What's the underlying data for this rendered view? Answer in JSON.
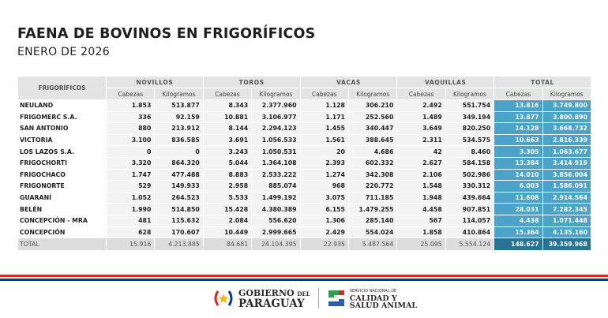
{
  "title": "FAENA DE BOVINOS EN FRIGORÍFICOS",
  "subtitle": "ENERO DE 2026",
  "table": {
    "first_header": "FRIGORÍFICOS",
    "groups": [
      "NOVILLOS",
      "TOROS",
      "VACAS",
      "VAQUILLAS",
      "TOTAL"
    ],
    "subheaders": [
      "Cabezas",
      "Kilogramos"
    ],
    "rows": [
      {
        "name": "NEULAND",
        "values": [
          "1.853",
          "513.877",
          "8.343",
          "2.377.960",
          "1.128",
          "306.210",
          "2.492",
          "551.754",
          "13.816",
          "3.749.800"
        ]
      },
      {
        "name": "FRIGOMERC S.A.",
        "values": [
          "336",
          "92.159",
          "10.881",
          "3.106.977",
          "1.171",
          "252.560",
          "1.489",
          "349.194",
          "13.877",
          "3.800.890"
        ]
      },
      {
        "name": "SAN ANTONIO",
        "values": [
          "880",
          "213.912",
          "8.144",
          "2.294.123",
          "1.455",
          "340.447",
          "3.649",
          "820.250",
          "14.128",
          "3.668.732"
        ]
      },
      {
        "name": "VICTORIA",
        "values": [
          "3.100",
          "836.585",
          "3.691",
          "1.056.533",
          "1.561",
          "388.645",
          "2.311",
          "534.575",
          "10.663",
          "2.816.339"
        ]
      },
      {
        "name": "LOS LAZOS S.A.",
        "values": [
          "0",
          "0",
          "3.243",
          "1.050.531",
          "20",
          "4.686",
          "42",
          "8.460",
          "3.305",
          "1.063.677"
        ]
      },
      {
        "name": "FRIGOCHORTI",
        "values": [
          "3.320",
          "864.320",
          "5.044",
          "1.364.108",
          "2.393",
          "602.332",
          "2.627",
          "584.158",
          "13.384",
          "3.414.919"
        ]
      },
      {
        "name": "FRIGOCHACO",
        "values": [
          "1.747",
          "477.488",
          "8.883",
          "2.533.222",
          "1.274",
          "342.308",
          "2.106",
          "502.986",
          "14.010",
          "3.856.004"
        ]
      },
      {
        "name": "FRIGONORTE",
        "values": [
          "529",
          "149.933",
          "2.958",
          "885.074",
          "968",
          "220.772",
          "1.548",
          "330.312",
          "6.003",
          "1.586.091"
        ]
      },
      {
        "name": "GUARANÍ",
        "values": [
          "1.052",
          "264.523",
          "5.533",
          "1.499.192",
          "3.075",
          "711.185",
          "1.948",
          "439.664",
          "11.608",
          "2.914.564"
        ]
      },
      {
        "name": "BELÉN",
        "values": [
          "1.990",
          "514.850",
          "15.428",
          "4.380.389",
          "6.155",
          "1.479.255",
          "4.458",
          "907.851",
          "28.031",
          "7.282.345"
        ]
      },
      {
        "name": "CONCEPCIÓN - MRA",
        "values": [
          "481",
          "115.632",
          "2.084",
          "556.620",
          "1.306",
          "285.140",
          "567",
          "114.057",
          "4.438",
          "1.071.448"
        ]
      },
      {
        "name": "CONCEPCIÓN",
        "values": [
          "628",
          "170.607",
          "10.449",
          "2.999.665",
          "2.429",
          "554.024",
          "1.858",
          "410.864",
          "15.364",
          "4.135.160"
        ]
      }
    ],
    "total": {
      "name": "TOTAL",
      "values": [
        "15.916",
        "4.213.885",
        "84.681",
        "24.104.395",
        "22.935",
        "5.487.564",
        "25.095",
        "5.554.124",
        "148.627",
        "39.359.968"
      ]
    }
  },
  "footer": {
    "gob_line1": "GOBIERNO",
    "gob_del": "DEL",
    "gob_line2": "PARAGUAY",
    "senacsa_line1": "SERVICIO NACIONAL DE",
    "senacsa_line2": "CALIDAD Y",
    "senacsa_line3": "SALUD ANIMAL"
  },
  "colors": {
    "total_col": "#4ba3c7",
    "grand_total": "#2a7291",
    "flag_red": "#d52b1e",
    "flag_blue": "#0038a8"
  }
}
